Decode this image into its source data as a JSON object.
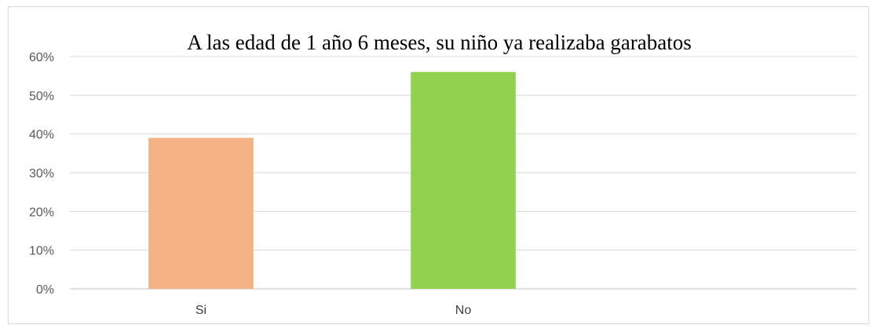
{
  "chart_data": {
    "type": "bar",
    "title": "A las edad de 1 año 6 meses, su niño ya realizaba garabatos",
    "xlabel": "",
    "ylabel": "",
    "categories": [
      "Si",
      "No",
      ""
    ],
    "values": [
      39,
      56,
      null
    ],
    "value_format": "percent",
    "ylim": [
      0,
      60
    ],
    "yticks": [
      0,
      10,
      20,
      30,
      40,
      50,
      60
    ],
    "ytick_labels": [
      "0%",
      "10%",
      "20%",
      "30%",
      "40%",
      "50%",
      "60%"
    ],
    "bar_colors": [
      "#f4b183",
      "#92d050"
    ],
    "grid": true,
    "legend": "none"
  }
}
